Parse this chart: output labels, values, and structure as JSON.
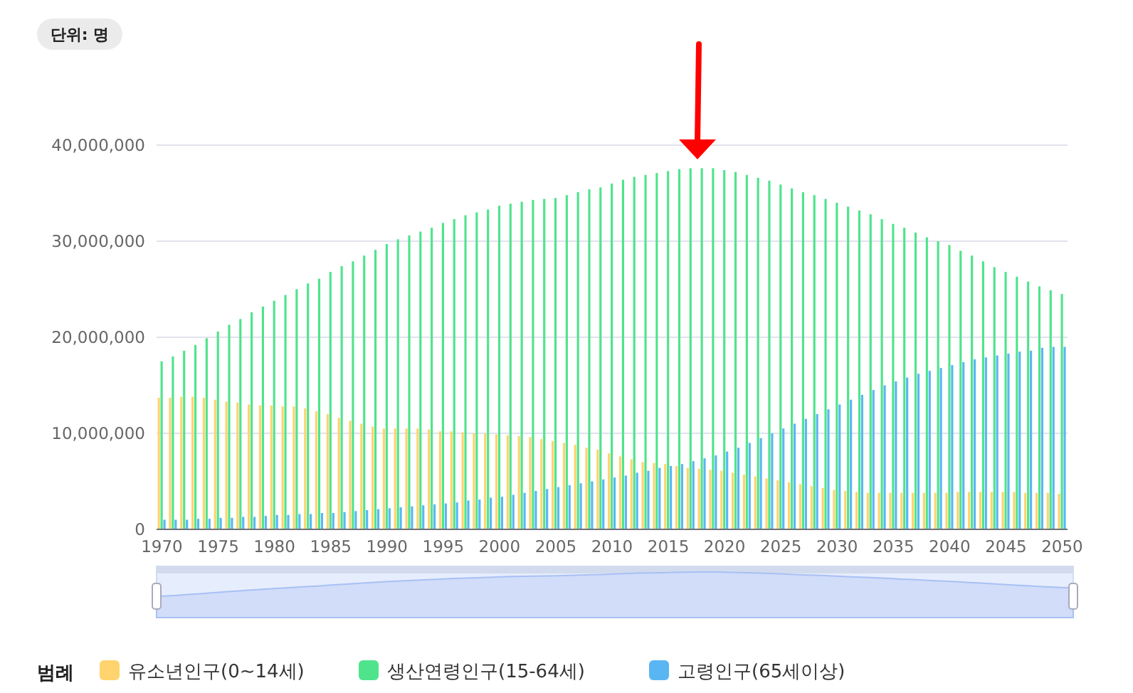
{
  "chart_data": {
    "type": "bar",
    "subtitle": "단위: 명",
    "legend_title": "범례",
    "legend": "bottom left",
    "grid": "y",
    "categories": [
      "1970",
      null,
      null,
      null,
      null,
      "1975",
      null,
      null,
      null,
      null,
      "1980",
      null,
      null,
      null,
      null,
      "1985",
      null,
      null,
      null,
      null,
      "1990",
      null,
      null,
      null,
      null,
      "1995",
      null,
      null,
      null,
      null,
      "2000",
      null,
      null,
      null,
      null,
      "2005",
      null,
      null,
      null,
      null,
      "2010",
      null,
      null,
      null,
      null,
      "2015",
      null,
      null,
      null,
      null,
      "2020",
      null,
      null,
      null,
      null,
      "2025",
      null,
      null,
      null,
      null,
      "2030",
      null,
      null,
      null,
      null,
      "2035",
      null,
      null,
      null,
      null,
      "2040",
      null,
      null,
      null,
      null,
      "2045",
      null,
      null,
      null,
      null,
      "2050"
    ],
    "ylim": [
      0,
      40000000
    ],
    "yticks": [
      0,
      {
        "value": 10000000,
        "label": "10,000,000"
      },
      {
        "value": 20000000,
        "label": "20,000,000"
      },
      {
        "value": 30000000,
        "label": "30,000,000"
      },
      {
        "value": 40000000,
        "label": "40,000,000"
      }
    ],
    "series": [
      {
        "name": "유소년인구(0~14세)",
        "color": "#ffd36e",
        "values": [
          13700000,
          13700000,
          13800000,
          13800000,
          13700000,
          13500000,
          13300000,
          13200000,
          13000000,
          12900000,
          12900000,
          12800000,
          12800000,
          12600000,
          12300000,
          12000000,
          11600000,
          11300000,
          11000000,
          10700000,
          10500000,
          10500000,
          10500000,
          10500000,
          10400000,
          10200000,
          10200000,
          10100000,
          10000000,
          10000000,
          9900000,
          9800000,
          9700000,
          9600000,
          9400000,
          9200000,
          9000000,
          8800000,
          8500000,
          8300000,
          7900000,
          7600000,
          7300000,
          7000000,
          6900000,
          6800000,
          6600000,
          6400000,
          6300000,
          6200000,
          6100000,
          5900000,
          5700000,
          5500000,
          5300000,
          5100000,
          4900000,
          4700000,
          4500000,
          4300000,
          4100000,
          4000000,
          3900000,
          3800000,
          3800000,
          3800000,
          3800000,
          3800000,
          3800000,
          3800000,
          3800000,
          3900000,
          3900000,
          3900000,
          3900000,
          3900000,
          3900000,
          3800000,
          3800000,
          3800000,
          3700000
        ]
      },
      {
        "name": "생산연령인구(15-64세)",
        "color": "#4fe48c",
        "values": [
          17500000,
          18000000,
          18600000,
          19200000,
          19900000,
          20600000,
          21300000,
          21900000,
          22600000,
          23200000,
          23800000,
          24400000,
          25000000,
          25600000,
          26100000,
          26800000,
          27400000,
          27900000,
          28500000,
          29100000,
          29700000,
          30200000,
          30600000,
          31000000,
          31400000,
          31900000,
          32300000,
          32700000,
          33000000,
          33300000,
          33700000,
          33900000,
          34100000,
          34300000,
          34400000,
          34500000,
          34800000,
          35100000,
          35400000,
          35600000,
          36000000,
          36400000,
          36700000,
          36900000,
          37100000,
          37300000,
          37500000,
          37600000,
          37600000,
          37600000,
          37400000,
          37200000,
          36900000,
          36600000,
          36300000,
          35900000,
          35500000,
          35100000,
          34800000,
          34400000,
          34000000,
          33600000,
          33200000,
          32800000,
          32300000,
          31800000,
          31400000,
          30900000,
          30400000,
          30000000,
          29600000,
          29000000,
          28500000,
          27900000,
          27300000,
          26800000,
          26300000,
          25800000,
          25300000,
          24900000,
          24500000
        ]
      },
      {
        "name": "고령인구(65세이상)",
        "color": "#5ab6f2",
        "values": [
          1000000,
          1000000,
          1000000,
          1100000,
          1100000,
          1200000,
          1200000,
          1300000,
          1300000,
          1400000,
          1500000,
          1500000,
          1600000,
          1600000,
          1700000,
          1700000,
          1800000,
          1900000,
          2000000,
          2100000,
          2200000,
          2300000,
          2400000,
          2500000,
          2600000,
          2700000,
          2800000,
          3000000,
          3100000,
          3300000,
          3400000,
          3600000,
          3800000,
          4000000,
          4200000,
          4400000,
          4600000,
          4800000,
          5000000,
          5200000,
          5400000,
          5600000,
          5900000,
          6100000,
          6400000,
          6600000,
          6800000,
          7100000,
          7400000,
          7700000,
          8100000,
          8500000,
          9000000,
          9500000,
          10000000,
          10500000,
          11000000,
          11500000,
          12000000,
          12500000,
          13000000,
          13500000,
          14000000,
          14500000,
          15000000,
          15400000,
          15800000,
          16200000,
          16500000,
          16800000,
          17100000,
          17400000,
          17700000,
          17900000,
          18100000,
          18300000,
          18500000,
          18600000,
          18900000,
          19000000,
          19000000
        ]
      }
    ]
  }
}
